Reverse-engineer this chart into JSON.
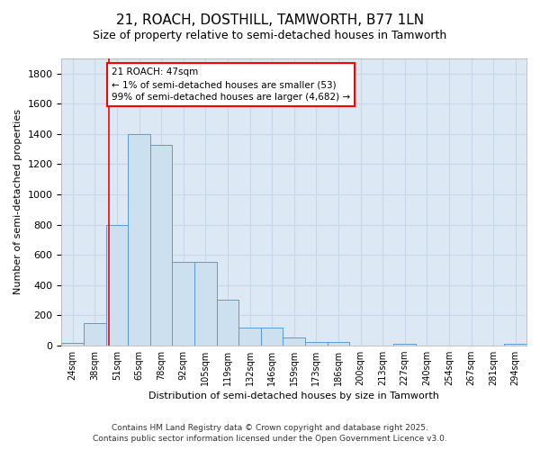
{
  "title": "21, ROACH, DOSTHILL, TAMWORTH, B77 1LN",
  "subtitle": "Size of property relative to semi-detached houses in Tamworth",
  "xlabel": "Distribution of semi-detached houses by size in Tamworth",
  "ylabel": "Number of semi-detached properties",
  "footer_line1": "Contains HM Land Registry data © Crown copyright and database right 2025.",
  "footer_line2": "Contains public sector information licensed under the Open Government Licence v3.0.",
  "bar_labels": [
    "24sqm",
    "38sqm",
    "51sqm",
    "65sqm",
    "78sqm",
    "92sqm",
    "105sqm",
    "119sqm",
    "132sqm",
    "146sqm",
    "159sqm",
    "173sqm",
    "186sqm",
    "200sqm",
    "213sqm",
    "227sqm",
    "240sqm",
    "254sqm",
    "267sqm",
    "281sqm",
    "294sqm"
  ],
  "bar_values": [
    15,
    150,
    800,
    1400,
    1330,
    550,
    550,
    300,
    120,
    120,
    50,
    20,
    20,
    0,
    0,
    10,
    0,
    0,
    0,
    0,
    10
  ],
  "bar_color": "#cce0f0",
  "bar_edgecolor": "#5b9bd5",
  "grid_color": "#c8d8ea",
  "bg_color": "#dce8f4",
  "fig_bg_color": "#ffffff",
  "red_line_x": 1.62,
  "annotation_text": "21 ROACH: 47sqm\n← 1% of semi-detached houses are smaller (53)\n99% of semi-detached houses are larger (4,682) →",
  "ylim": [
    0,
    1900
  ],
  "yticks": [
    0,
    200,
    400,
    600,
    800,
    1000,
    1200,
    1400,
    1600,
    1800
  ]
}
